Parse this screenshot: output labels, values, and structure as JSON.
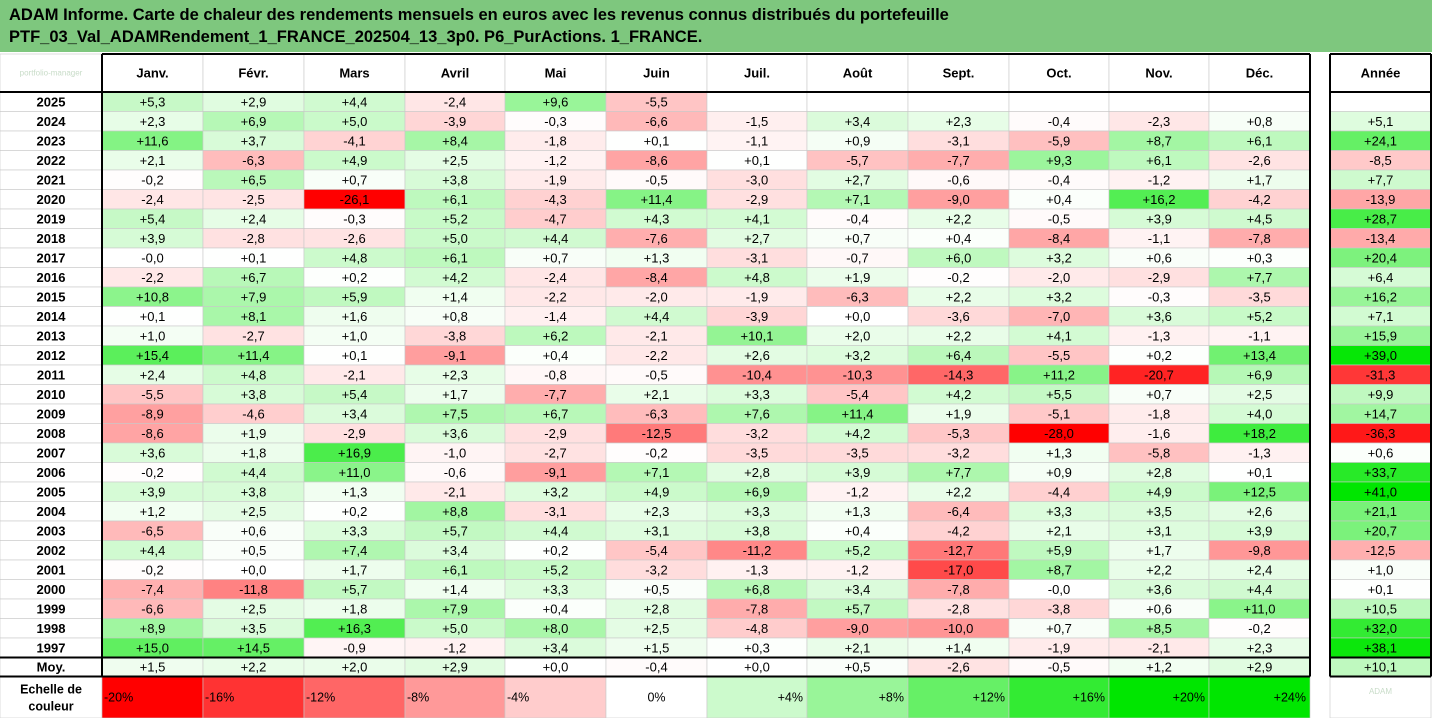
{
  "title": {
    "line1": "ADAM Informe. Carte de chaleur des rendements mensuels en euros avec les revenus connus distribués du portefeuille",
    "line2": "PTF_03_Val_ADAMRendement_1_FRANCE_202504_13_3p0. P6_PurActions. 1_FRANCE."
  },
  "corner_watermark": "portfolio-manager",
  "scale_watermark": "ADAM",
  "colors": {
    "header_bg": "#7ec77e",
    "positive": "#00e600",
    "negative": "#ff0000",
    "neutral": "#ffffff"
  },
  "chart_data": {
    "type": "heatmap",
    "columns": [
      "Janv.",
      "Févr.",
      "Mars",
      "Avril",
      "Mai",
      "Juin",
      "Juil.",
      "Août",
      "Sept.",
      "Oct.",
      "Nov.",
      "Déc."
    ],
    "year_column": "Année",
    "rows": [
      {
        "year": "2025",
        "values": [
          "+5,3",
          "+2,9",
          "+4,4",
          "-2,4",
          "+9,6",
          "-5,5",
          "",
          "",
          "",
          "",
          "",
          ""
        ],
        "annual": ""
      },
      {
        "year": "2024",
        "values": [
          "+2,3",
          "+6,9",
          "+5,0",
          "-3,9",
          "-0,3",
          "-6,6",
          "-1,5",
          "+3,4",
          "+2,3",
          "-0,4",
          "-2,3",
          "+0,8"
        ],
        "annual": "+5,1"
      },
      {
        "year": "2023",
        "values": [
          "+11,6",
          "+3,7",
          "-4,1",
          "+8,4",
          "-1,8",
          "+0,1",
          "-1,1",
          "+0,9",
          "-3,1",
          "-5,9",
          "+8,7",
          "+6,1"
        ],
        "annual": "+24,1"
      },
      {
        "year": "2022",
        "values": [
          "+2,1",
          "-6,3",
          "+4,9",
          "+2,5",
          "-1,2",
          "-8,6",
          "+0,1",
          "-5,7",
          "-7,7",
          "+9,3",
          "+6,1",
          "-2,6"
        ],
        "annual": "-8,5"
      },
      {
        "year": "2021",
        "values": [
          "-0,2",
          "+6,5",
          "+0,7",
          "+3,8",
          "-1,9",
          "-0,5",
          "-3,0",
          "+2,7",
          "-0,6",
          "-0,4",
          "-1,2",
          "+1,7"
        ],
        "annual": "+7,7"
      },
      {
        "year": "2020",
        "values": [
          "-2,4",
          "-2,5",
          "-26,1",
          "+6,1",
          "-4,3",
          "+11,4",
          "-2,9",
          "+7,1",
          "-9,0",
          "+0,4",
          "+16,2",
          "-4,2"
        ],
        "annual": "-13,9"
      },
      {
        "year": "2019",
        "values": [
          "+5,4",
          "+2,4",
          "-0,3",
          "+5,2",
          "-4,7",
          "+4,3",
          "+4,1",
          "-0,4",
          "+2,2",
          "-0,5",
          "+3,9",
          "+4,5"
        ],
        "annual": "+28,7"
      },
      {
        "year": "2018",
        "values": [
          "+3,9",
          "-2,8",
          "-2,6",
          "+5,0",
          "+4,4",
          "-7,6",
          "+2,7",
          "+0,7",
          "+0,4",
          "-8,4",
          "-1,1",
          "-7,8"
        ],
        "annual": "-13,4"
      },
      {
        "year": "2017",
        "values": [
          "-0,0",
          "+0,1",
          "+4,8",
          "+6,1",
          "+0,7",
          "+1,3",
          "-3,1",
          "-0,7",
          "+6,0",
          "+3,2",
          "+0,6",
          "+0,3"
        ],
        "annual": "+20,4"
      },
      {
        "year": "2016",
        "values": [
          "-2,2",
          "+6,7",
          "+0,2",
          "+4,2",
          "-2,4",
          "-8,4",
          "+4,8",
          "+1,9",
          "-0,2",
          "-2,0",
          "-2,9",
          "+7,7"
        ],
        "annual": "+6,4"
      },
      {
        "year": "2015",
        "values": [
          "+10,8",
          "+7,9",
          "+5,9",
          "+1,4",
          "-2,2",
          "-2,0",
          "-1,9",
          "-6,3",
          "+2,2",
          "+3,2",
          "-0,3",
          "-3,5"
        ],
        "annual": "+16,2"
      },
      {
        "year": "2014",
        "values": [
          "+0,1",
          "+8,1",
          "+1,6",
          "+0,8",
          "-1,4",
          "+4,4",
          "-3,9",
          "+0,0",
          "-3,6",
          "-7,0",
          "+3,6",
          "+5,2"
        ],
        "annual": "+7,1"
      },
      {
        "year": "2013",
        "values": [
          "+1,0",
          "-2,7",
          "+1,0",
          "-3,8",
          "+6,2",
          "-2,1",
          "+10,1",
          "+2,0",
          "+2,2",
          "+4,1",
          "-1,3",
          "-1,1"
        ],
        "annual": "+15,9"
      },
      {
        "year": "2012",
        "values": [
          "+15,4",
          "+11,4",
          "+0,1",
          "-9,1",
          "+0,4",
          "-2,2",
          "+2,6",
          "+3,2",
          "+6,4",
          "-5,5",
          "+0,2",
          "+13,4"
        ],
        "annual": "+39,0"
      },
      {
        "year": "2011",
        "values": [
          "+2,4",
          "+4,8",
          "-2,1",
          "+2,3",
          "-0,8",
          "-0,5",
          "-10,4",
          "-10,3",
          "-14,3",
          "+11,2",
          "-20,7",
          "+6,9"
        ],
        "annual": "-31,3"
      },
      {
        "year": "2010",
        "values": [
          "-5,5",
          "+3,8",
          "+5,4",
          "+1,7",
          "-7,7",
          "+2,1",
          "+3,3",
          "-5,4",
          "+4,2",
          "+5,5",
          "+0,7",
          "+2,5"
        ],
        "annual": "+9,9"
      },
      {
        "year": "2009",
        "values": [
          "-8,9",
          "-4,6",
          "+3,4",
          "+7,5",
          "+6,7",
          "-6,3",
          "+7,6",
          "+11,4",
          "+1,9",
          "-5,1",
          "-1,8",
          "+4,0"
        ],
        "annual": "+14,7"
      },
      {
        "year": "2008",
        "values": [
          "-8,6",
          "+1,9",
          "-2,9",
          "+3,6",
          "-2,9",
          "-12,5",
          "-3,2",
          "+4,2",
          "-5,3",
          "-28,0",
          "-1,6",
          "+18,2"
        ],
        "annual": "-36,3"
      },
      {
        "year": "2007",
        "values": [
          "+3,6",
          "+1,8",
          "+16,9",
          "-1,0",
          "-2,7",
          "-0,2",
          "-3,5",
          "-3,5",
          "-3,2",
          "+1,3",
          "-5,8",
          "-1,3"
        ],
        "annual": "+0,6"
      },
      {
        "year": "2006",
        "values": [
          "-0,2",
          "+4,4",
          "+11,0",
          "-0,6",
          "-9,1",
          "+7,1",
          "+2,8",
          "+3,9",
          "+7,7",
          "+0,9",
          "+2,8",
          "+0,1"
        ],
        "annual": "+33,7"
      },
      {
        "year": "2005",
        "values": [
          "+3,9",
          "+3,8",
          "+1,3",
          "-2,1",
          "+3,2",
          "+4,9",
          "+6,9",
          "-1,2",
          "+2,2",
          "-4,4",
          "+4,9",
          "+12,5"
        ],
        "annual": "+41,0"
      },
      {
        "year": "2004",
        "values": [
          "+1,2",
          "+2,5",
          "+0,2",
          "+8,8",
          "-3,1",
          "+2,3",
          "+3,3",
          "+1,3",
          "-6,4",
          "+3,3",
          "+3,5",
          "+2,6"
        ],
        "annual": "+21,1"
      },
      {
        "year": "2003",
        "values": [
          "-6,5",
          "+0,6",
          "+3,3",
          "+5,7",
          "+4,4",
          "+3,1",
          "+3,8",
          "+0,4",
          "-4,2",
          "+2,1",
          "+3,1",
          "+3,9"
        ],
        "annual": "+20,7"
      },
      {
        "year": "2002",
        "values": [
          "+4,4",
          "+0,5",
          "+7,4",
          "+3,4",
          "+0,2",
          "-5,4",
          "-11,2",
          "+5,2",
          "-12,7",
          "+5,9",
          "+1,7",
          "-9,8"
        ],
        "annual": "-12,5"
      },
      {
        "year": "2001",
        "values": [
          "-0,2",
          "+0,0",
          "+1,7",
          "+6,1",
          "+5,2",
          "-3,2",
          "-1,3",
          "-1,2",
          "-17,0",
          "+8,7",
          "+2,2",
          "+2,4"
        ],
        "annual": "+1,0"
      },
      {
        "year": "2000",
        "values": [
          "-7,4",
          "-11,8",
          "+5,7",
          "+1,4",
          "+3,3",
          "+0,5",
          "+6,8",
          "+3,4",
          "-7,8",
          "-0,0",
          "+3,6",
          "+4,4"
        ],
        "annual": "+0,1"
      },
      {
        "year": "1999",
        "values": [
          "-6,6",
          "+2,5",
          "+1,8",
          "+7,9",
          "+0,4",
          "+2,8",
          "-7,8",
          "+5,7",
          "-2,8",
          "-3,8",
          "+0,6",
          "+11,0"
        ],
        "annual": "+10,5"
      },
      {
        "year": "1998",
        "values": [
          "+8,9",
          "+3,5",
          "+16,3",
          "+5,0",
          "+8,0",
          "+2,5",
          "-4,8",
          "-9,0",
          "-10,0",
          "+0,7",
          "+8,5",
          "-0,2"
        ],
        "annual": "+32,0"
      },
      {
        "year": "1997",
        "values": [
          "+15,0",
          "+14,5",
          "-0,9",
          "-1,2",
          "+3,4",
          "+1,5",
          "+0,3",
          "+2,1",
          "+1,4",
          "-1,9",
          "-2,1",
          "+2,3"
        ],
        "annual": "+38,1"
      }
    ],
    "average": {
      "label": "Moy.",
      "values": [
        "+1,5",
        "+2,2",
        "+2,0",
        "+2,9",
        "+0,0",
        "-0,4",
        "+0,0",
        "+0,5",
        "-2,6",
        "-0,5",
        "+1,2",
        "+2,9"
      ],
      "annual": "+10,1"
    },
    "scale": {
      "label_line1": "Echelle de",
      "label_line2": "couleur",
      "labels": [
        "-20%",
        "-16%",
        "-12%",
        "-8%",
        "-4%",
        "0%",
        "+4%",
        "+8%",
        "+12%",
        "+16%",
        "+20%",
        "+24%"
      ],
      "values": [
        -20,
        -16,
        -12,
        -8,
        -4,
        0,
        4,
        8,
        12,
        16,
        20,
        24
      ]
    }
  }
}
